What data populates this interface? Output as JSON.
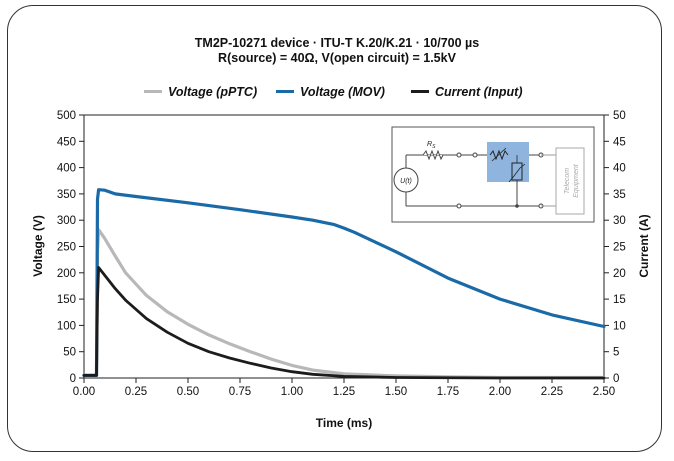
{
  "chart_data": {
    "type": "line",
    "title": "TM2P-10271 device · ITU-T K.20/K.21 · 10/700 µs",
    "subtitle": "R(source) = 40Ω, V(open circuit) = 1.5kV",
    "xlabel": "Time (ms)",
    "ylabel": "Voltage (V)",
    "y2label": "Current (A)",
    "xlim": [
      0,
      2.5
    ],
    "ylim": [
      0,
      500
    ],
    "y2lim": [
      0,
      50
    ],
    "x_ticks": [
      "0.00",
      "0.25",
      "0.50",
      "0.75",
      "1.00",
      "1.25",
      "1.50",
      "1.75",
      "2.00",
      "2.25",
      "2.50"
    ],
    "y_ticks": [
      "0",
      "50",
      "100",
      "150",
      "200",
      "250",
      "300",
      "350",
      "400",
      "450",
      "500"
    ],
    "y2_ticks": [
      "0",
      "5",
      "10",
      "15",
      "20",
      "25",
      "30",
      "35",
      "40",
      "45",
      "50"
    ],
    "grid": false,
    "legend_position": "top",
    "series": [
      {
        "name": "Voltage (pPTC)",
        "color": "#b8b8b8",
        "axis": "left",
        "x": [
          0,
          0.06,
          0.065,
          0.07,
          0.1,
          0.15,
          0.2,
          0.3,
          0.4,
          0.5,
          0.6,
          0.7,
          0.8,
          0.9,
          1.0,
          1.1,
          1.25,
          1.5,
          1.75,
          2.0,
          2.25,
          2.5
        ],
        "y": [
          5,
          5,
          240,
          282,
          265,
          232,
          200,
          157,
          126,
          102,
          82,
          65,
          50,
          36,
          24,
          15,
          8,
          4,
          2,
          1,
          1,
          1
        ]
      },
      {
        "name": "Voltage (MOV)",
        "color": "#1a6aa8",
        "axis": "left",
        "x": [
          0,
          0.06,
          0.065,
          0.07,
          0.1,
          0.15,
          0.25,
          0.5,
          0.75,
          1.0,
          1.1,
          1.2,
          1.25,
          1.3,
          1.5,
          1.75,
          2.0,
          2.25,
          2.5
        ],
        "y": [
          5,
          5,
          340,
          358,
          357,
          350,
          345,
          333,
          320,
          306,
          300,
          292,
          285,
          277,
          240,
          190,
          150,
          120,
          98
        ]
      },
      {
        "name": "Current (Input)",
        "color": "#1c1c1c",
        "axis": "right",
        "x": [
          0,
          0.06,
          0.065,
          0.07,
          0.1,
          0.15,
          0.2,
          0.3,
          0.4,
          0.5,
          0.6,
          0.7,
          0.8,
          0.9,
          1.0,
          1.1,
          1.25,
          1.5,
          2.0,
          2.5
        ],
        "y": [
          0.5,
          0.5,
          15,
          21,
          19.5,
          17,
          14.8,
          11.3,
          8.7,
          6.6,
          5.0,
          3.8,
          2.8,
          1.9,
          1.2,
          0.7,
          0.3,
          0.1,
          0,
          0
        ]
      }
    ]
  },
  "inset": {
    "source_label": "U(t)",
    "resistor_label": "R",
    "resistor_subscript": "S",
    "equipment_label_1": "Telecom",
    "equipment_label_2": "Equipment",
    "highlight_color": "#8fb5de"
  }
}
